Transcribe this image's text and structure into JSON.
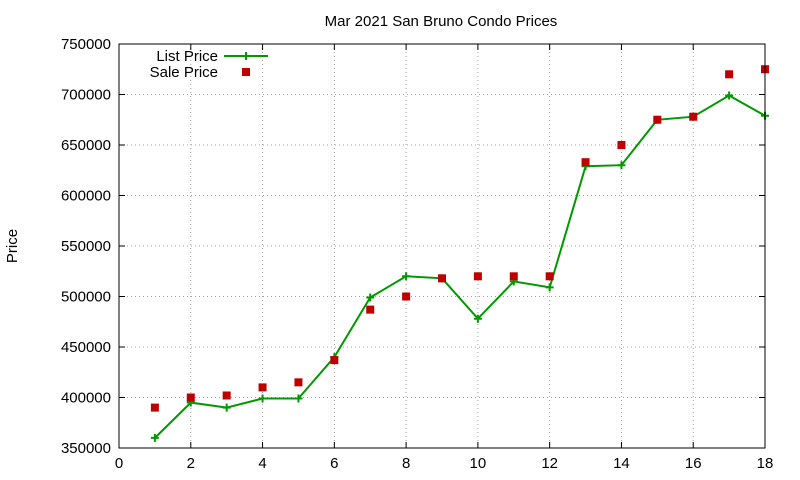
{
  "chart_data": {
    "type": "line",
    "title": "Mar 2021 San Bruno Condo Prices",
    "xlabel": "",
    "ylabel": "Price",
    "xlim": [
      0,
      18
    ],
    "ylim": [
      350000,
      750000
    ],
    "x_ticks": [
      0,
      2,
      4,
      6,
      8,
      10,
      12,
      14,
      16,
      18
    ],
    "y_ticks": [
      350000,
      400000,
      450000,
      500000,
      550000,
      600000,
      650000,
      700000,
      750000
    ],
    "grid": true,
    "legend_position": "top-left",
    "series": [
      {
        "name": "List Price",
        "style": "line-with-plus-markers",
        "color": "#009900",
        "x": [
          1,
          2,
          3,
          4,
          5,
          6,
          7,
          8,
          9,
          10,
          11,
          12,
          13,
          14,
          15,
          16,
          17,
          18
        ],
        "values": [
          360000,
          395000,
          390000,
          399000,
          399000,
          440000,
          499000,
          520000,
          518000,
          478000,
          515000,
          509000,
          629000,
          630000,
          675000,
          678000,
          699000,
          679000
        ]
      },
      {
        "name": "Sale Price",
        "style": "square-markers",
        "color": "#c00000",
        "x": [
          1,
          2,
          3,
          4,
          5,
          6,
          7,
          8,
          9,
          10,
          11,
          12,
          13,
          14,
          15,
          16,
          17,
          18
        ],
        "values": [
          390000,
          400000,
          402000,
          410000,
          415000,
          437000,
          487000,
          500000,
          518000,
          520000,
          520000,
          520000,
          633000,
          650000,
          675000,
          678000,
          720000,
          725000
        ]
      }
    ]
  }
}
